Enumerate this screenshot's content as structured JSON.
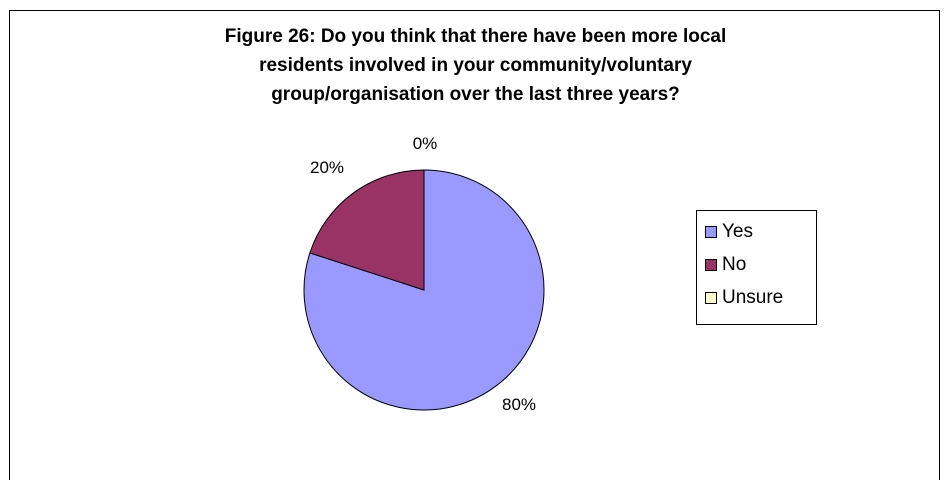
{
  "chart_data": {
    "type": "pie",
    "title_lines": [
      "Figure 26:  Do you think that there have been more local",
      "residents involved in your community/voluntary",
      "group/organisation over the last three years?"
    ],
    "categories": [
      "Yes",
      "No",
      "Unsure"
    ],
    "values": [
      80,
      20,
      0
    ],
    "data_labels": [
      "80%",
      "20%",
      "0%"
    ],
    "colors": [
      "#9999ff",
      "#993366",
      "#ffffcc"
    ],
    "legend_position": "right"
  }
}
